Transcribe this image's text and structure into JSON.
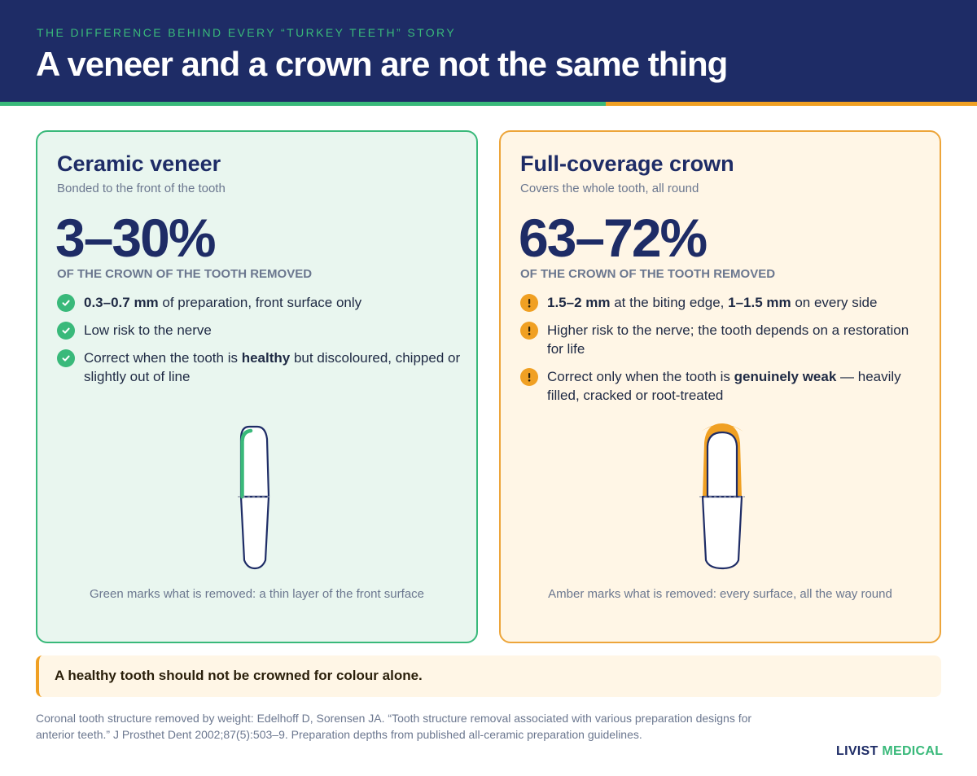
{
  "header": {
    "eyebrow": "THE DIFFERENCE BEHIND EVERY “TURKEY TEETH” STORY",
    "title": "A veneer and a crown are not the same thing"
  },
  "colors": {
    "navy": "#1e2c66",
    "green": "#39b97a",
    "amber": "#f0a023",
    "green_bg": "#e9f6ef",
    "amber_bg": "#fff6e6"
  },
  "veneer": {
    "title": "Ceramic veneer",
    "subtitle": "Bonded to the front of the tooth",
    "big_number": "3–30%",
    "caption": "OF THE CROWN OF THE TOOTH REMOVED",
    "bullet_icon": "check-icon",
    "items": [
      {
        "strong": "0.3–0.7 mm",
        "text": " of preparation, front surface only"
      },
      {
        "text": "Low risk to the nerve"
      },
      {
        "text": "Correct when the tooth is ",
        "strong": "healthy",
        "text2": " but discoloured, chipped or slightly out of line"
      }
    ],
    "note": "Green marks what is removed: a thin layer of the front surface"
  },
  "crown": {
    "title": "Full-coverage crown",
    "subtitle": "Covers the whole tooth, all round",
    "big_number": "63–72%",
    "caption": "OF THE CROWN OF THE TOOTH REMOVED",
    "bullet_icon": "exclamation-icon",
    "items": [
      {
        "strong": "1.5–2 mm",
        "text": " at the biting edge, ",
        "strong2": "1–1.5 mm",
        "text2": " on every side"
      },
      {
        "text": "Higher risk to the nerve; the tooth depends on a restoration for life"
      },
      {
        "text": "Correct only when the tooth is ",
        "strong": "genuinely weak",
        "text2": " — heavily filled, cracked or root-treated"
      }
    ],
    "note": "Amber marks what is removed: every surface, all the way round"
  },
  "callout": "A healthy tooth should not be crowned for colour alone.",
  "source": "Coronal tooth structure removed by weight: Edelhoff D, Sorensen JA. “Tooth structure removal associated with various preparation designs for anterior teeth.” J Prosthet Dent 2002;87(5):503–9. Preparation depths from published all-ceramic preparation guidelines.",
  "brand": {
    "part1": "LIVIST",
    "part2": "MEDICAL"
  }
}
